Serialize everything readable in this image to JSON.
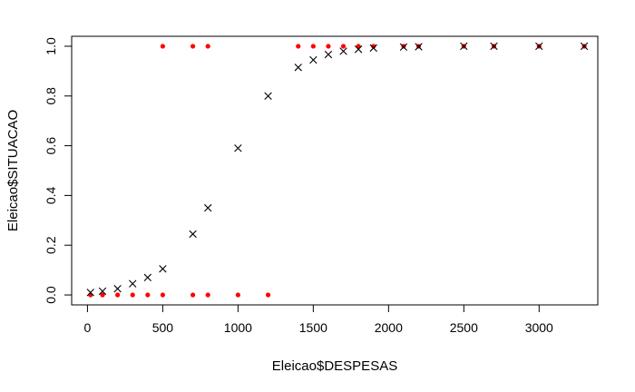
{
  "chart_data": {
    "type": "scatter",
    "xlabel": "Eleicao$DESPESAS",
    "ylabel": "Eleicao$SITUACAO",
    "xlim": [
      -105,
      3390
    ],
    "ylim": [
      -0.04,
      1.04
    ],
    "x_ticks": [
      0,
      500,
      1000,
      1500,
      2000,
      2500,
      3000
    ],
    "y_ticks": [
      0.0,
      0.2,
      0.4,
      0.6,
      0.8,
      1.0
    ],
    "x_tick_labels": [
      "0",
      "500",
      "1000",
      "1500",
      "2000",
      "2500",
      "3000"
    ],
    "y_tick_labels": [
      "0.0",
      "0.2",
      "0.4",
      "0.6",
      "0.8",
      "1.0"
    ],
    "grid": false,
    "series": [
      {
        "marker": "dot",
        "color": "#ff0000",
        "points": [
          [
            20,
            0
          ],
          [
            100,
            0
          ],
          [
            200,
            0
          ],
          [
            300,
            0
          ],
          [
            400,
            0
          ],
          [
            500,
            0
          ],
          [
            500,
            1
          ],
          [
            700,
            0
          ],
          [
            700,
            1
          ],
          [
            800,
            0
          ],
          [
            800,
            1
          ],
          [
            1000,
            0
          ],
          [
            1200,
            0
          ],
          [
            1400,
            1
          ],
          [
            1500,
            1
          ],
          [
            1600,
            1
          ],
          [
            1700,
            1
          ],
          [
            1800,
            1
          ],
          [
            1900,
            1
          ],
          [
            2100,
            1
          ],
          [
            2200,
            1
          ],
          [
            2500,
            1
          ],
          [
            2700,
            1
          ],
          [
            3000,
            1
          ],
          [
            3300,
            1
          ]
        ]
      },
      {
        "marker": "cross",
        "color": "#000000",
        "points": [
          [
            20,
            0.01
          ],
          [
            100,
            0.015
          ],
          [
            200,
            0.025
          ],
          [
            300,
            0.045
          ],
          [
            400,
            0.07
          ],
          [
            500,
            0.105
          ],
          [
            700,
            0.245
          ],
          [
            800,
            0.35
          ],
          [
            1000,
            0.59
          ],
          [
            1200,
            0.8
          ],
          [
            1400,
            0.915
          ],
          [
            1500,
            0.945
          ],
          [
            1600,
            0.967
          ],
          [
            1700,
            0.98
          ],
          [
            1800,
            0.988
          ],
          [
            1900,
            0.993
          ],
          [
            2100,
            0.997
          ],
          [
            2200,
            0.998
          ],
          [
            2500,
            1.0
          ],
          [
            2700,
            1.0
          ],
          [
            3000,
            1.0
          ],
          [
            3300,
            1.0
          ]
        ]
      }
    ]
  }
}
